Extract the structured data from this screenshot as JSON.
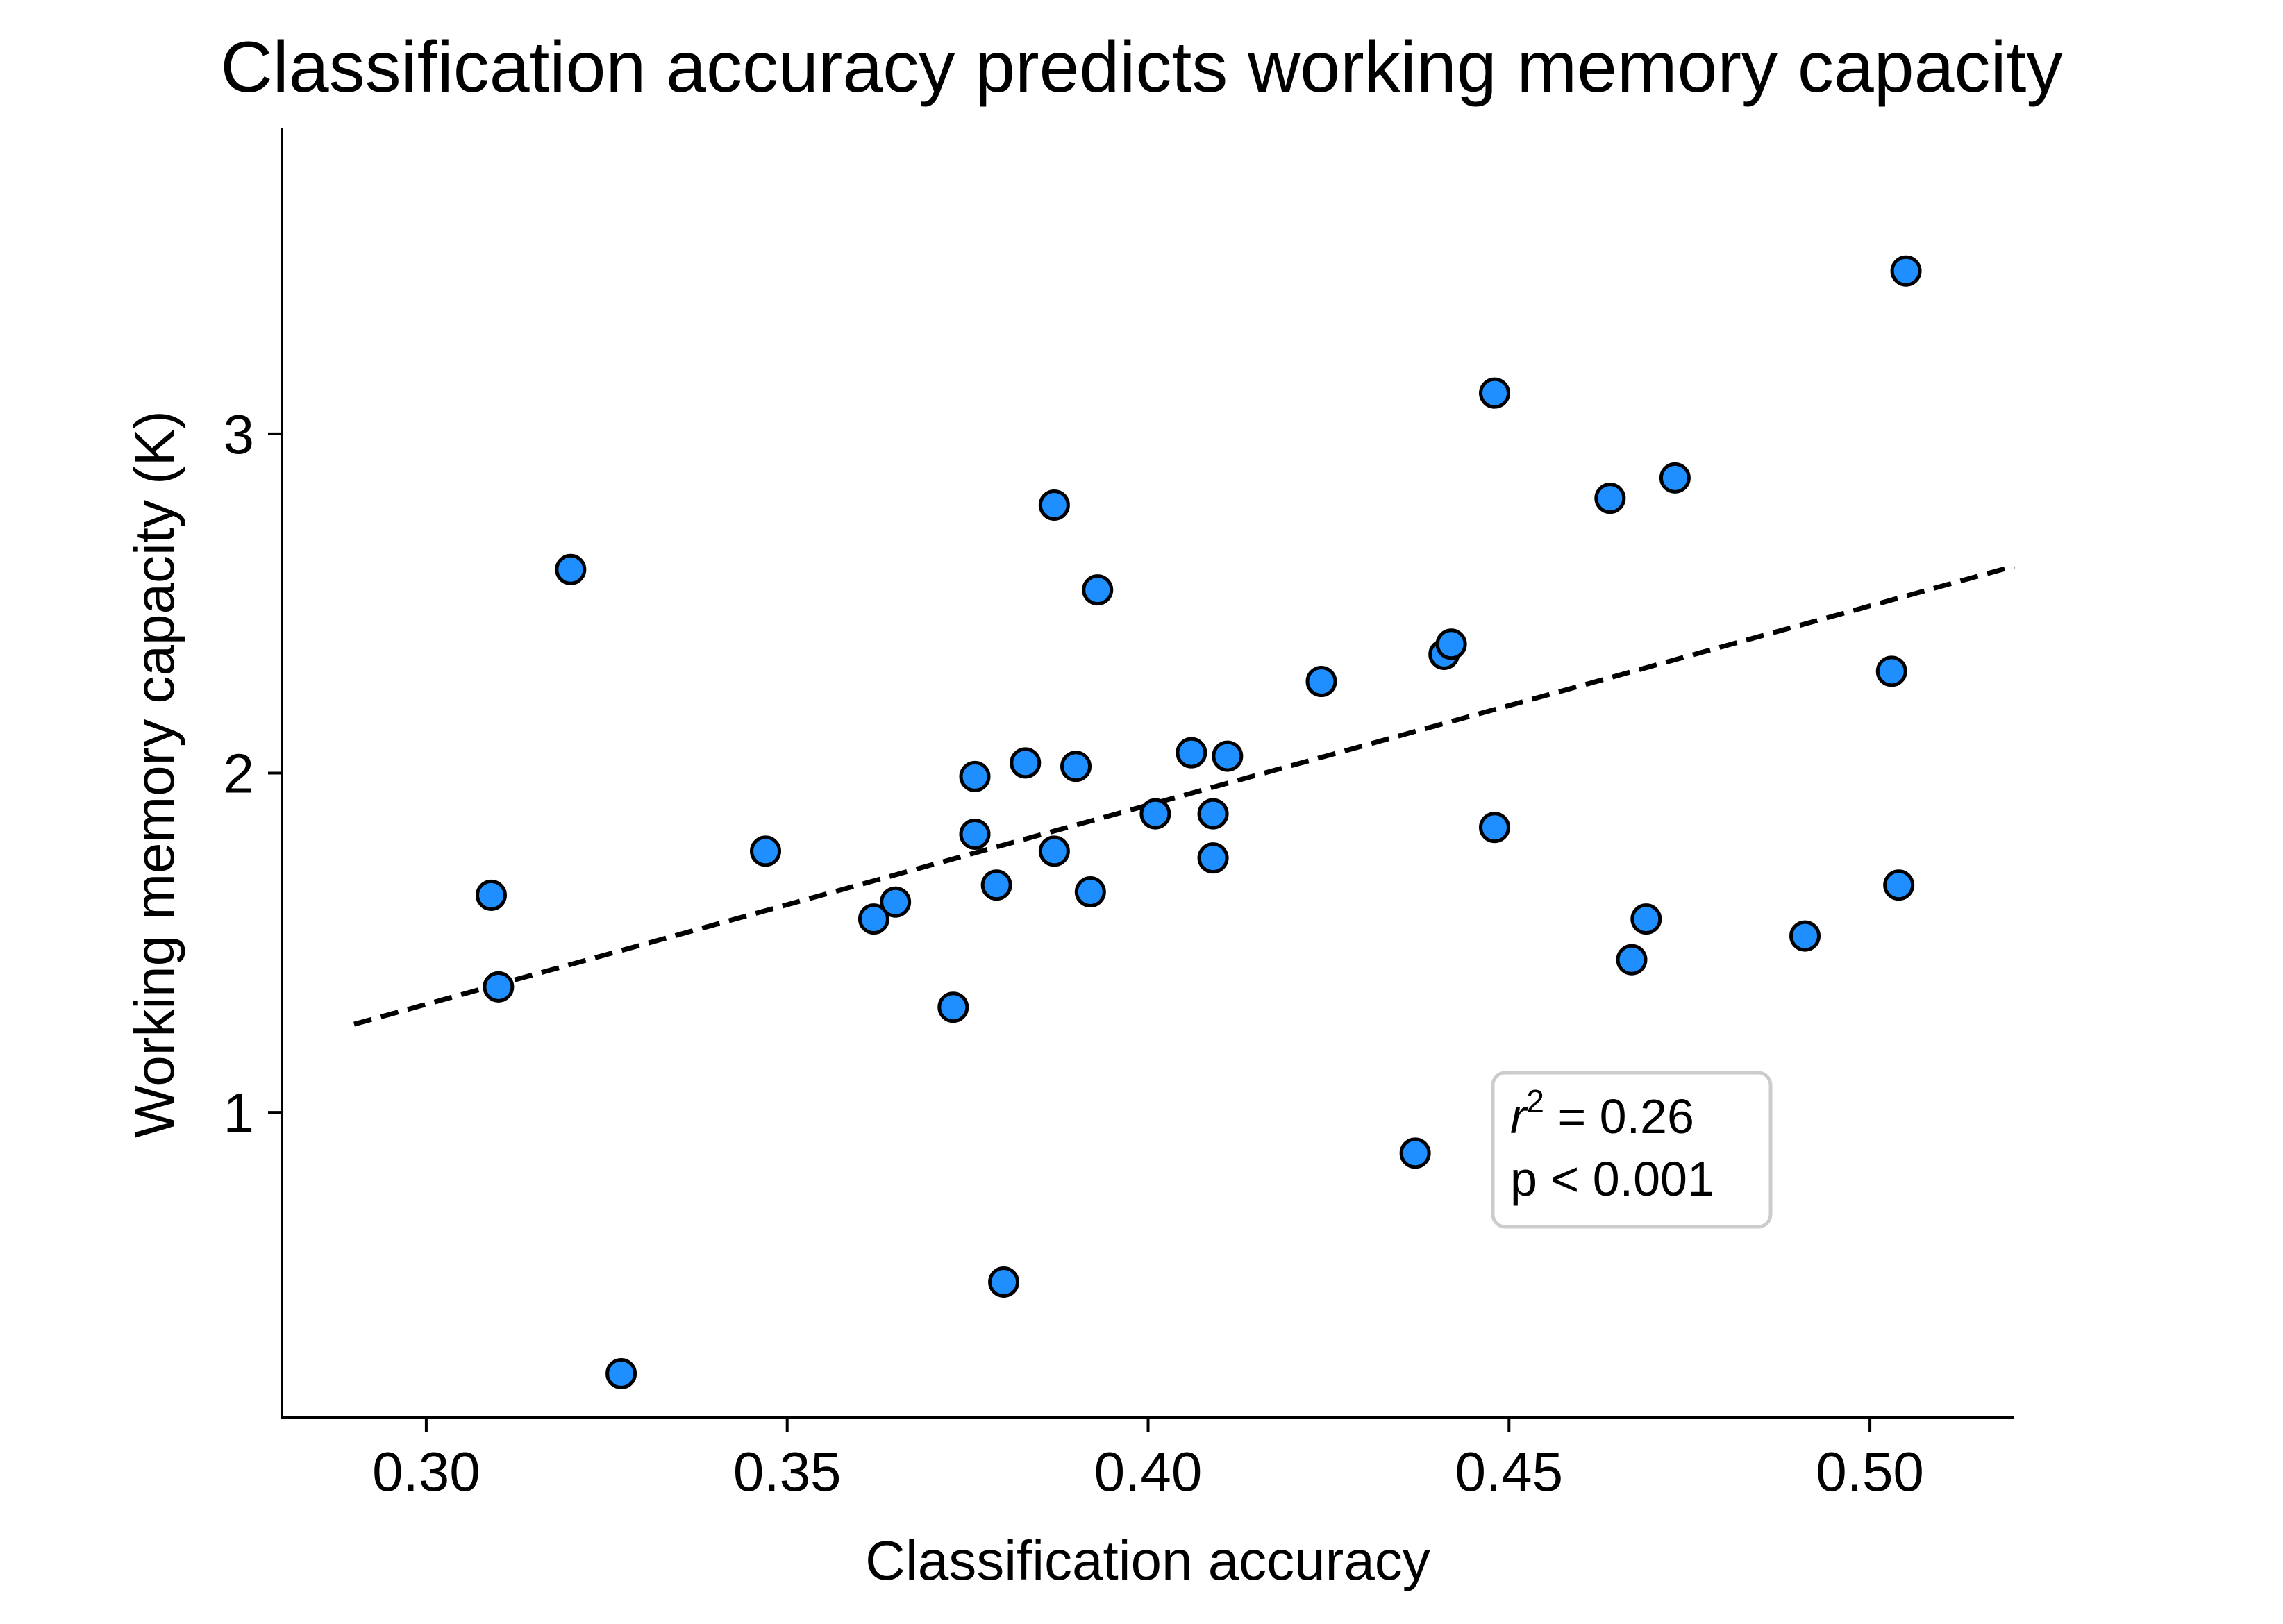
{
  "chart_data": {
    "type": "scatter",
    "title": "Classification accuracy predicts working memory capacity",
    "xlabel": "Classification accuracy",
    "ylabel": "Working memory capacity (K)",
    "xlim": [
      0.28,
      0.52
    ],
    "ylim": [
      0.1,
      3.9
    ],
    "xticks": [
      0.3,
      0.35,
      0.4,
      0.45,
      0.5
    ],
    "xtick_labels": [
      "0.30",
      "0.35",
      "0.40",
      "0.45",
      "0.50"
    ],
    "yticks": [
      1,
      2,
      3
    ],
    "ytick_labels": [
      "1",
      "2",
      "3"
    ],
    "grid": false,
    "marker_color": "#1f8fff",
    "marker_edge_color": "#000000",
    "points": [
      {
        "x": 0.309,
        "y": 1.64
      },
      {
        "x": 0.31,
        "y": 1.37
      },
      {
        "x": 0.32,
        "y": 2.6
      },
      {
        "x": 0.327,
        "y": 0.23
      },
      {
        "x": 0.347,
        "y": 1.77
      },
      {
        "x": 0.362,
        "y": 1.57
      },
      {
        "x": 0.365,
        "y": 1.62
      },
      {
        "x": 0.373,
        "y": 1.31
      },
      {
        "x": 0.376,
        "y": 1.99
      },
      {
        "x": 0.376,
        "y": 1.82
      },
      {
        "x": 0.379,
        "y": 1.67
      },
      {
        "x": 0.38,
        "y": 0.5
      },
      {
        "x": 0.383,
        "y": 2.03
      },
      {
        "x": 0.387,
        "y": 2.79
      },
      {
        "x": 0.387,
        "y": 1.77
      },
      {
        "x": 0.39,
        "y": 2.02
      },
      {
        "x": 0.392,
        "y": 1.65
      },
      {
        "x": 0.393,
        "y": 2.54
      },
      {
        "x": 0.401,
        "y": 1.88
      },
      {
        "x": 0.406,
        "y": 2.06
      },
      {
        "x": 0.409,
        "y": 1.88
      },
      {
        "x": 0.409,
        "y": 1.75
      },
      {
        "x": 0.411,
        "y": 2.05
      },
      {
        "x": 0.424,
        "y": 2.27
      },
      {
        "x": 0.437,
        "y": 0.88
      },
      {
        "x": 0.441,
        "y": 2.35
      },
      {
        "x": 0.442,
        "y": 2.38
      },
      {
        "x": 0.448,
        "y": 3.12
      },
      {
        "x": 0.448,
        "y": 1.84
      },
      {
        "x": 0.464,
        "y": 2.81
      },
      {
        "x": 0.467,
        "y": 1.45
      },
      {
        "x": 0.469,
        "y": 1.57
      },
      {
        "x": 0.473,
        "y": 2.87
      },
      {
        "x": 0.491,
        "y": 1.52
      },
      {
        "x": 0.503,
        "y": 2.3
      },
      {
        "x": 0.504,
        "y": 1.67
      },
      {
        "x": 0.505,
        "y": 3.48
      }
    ],
    "fit_line": {
      "style": "dashed",
      "color": "#000000",
      "x": [
        0.29,
        0.52
      ],
      "y": [
        1.26,
        2.61
      ]
    },
    "annotation": {
      "r2_symbol": "r",
      "r2_superscript": "2",
      "r2_text": " = 0.26",
      "p_text": "p < 0.001",
      "placement": "lower-right"
    }
  }
}
